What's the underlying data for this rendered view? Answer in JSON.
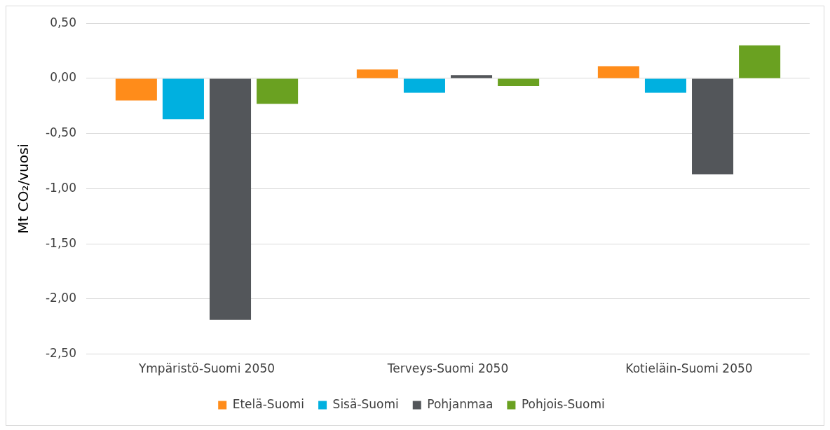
{
  "chart_data": {
    "type": "bar",
    "ylabel": "Mt CO₂/vuosi",
    "categories": [
      "Ympäristö-Suomi 2050",
      "Terveys-Suomi 2050",
      "Kotieläin-Suomi 2050"
    ],
    "series": [
      {
        "name": "Etelä-Suomi",
        "color": "#ff8c1a",
        "values": [
          -0.2,
          0.08,
          0.11
        ]
      },
      {
        "name": "Sisä-Suomi",
        "color": "#00b0e0",
        "values": [
          -0.37,
          -0.13,
          -0.13
        ]
      },
      {
        "name": "Pohjanmaa",
        "color": "#53565a",
        "values": [
          -2.19,
          0.03,
          -0.87
        ]
      },
      {
        "name": "Pohjois-Suomi",
        "color": "#6aa121",
        "values": [
          -0.23,
          -0.07,
          0.3
        ]
      }
    ],
    "ylim": [
      -2.5,
      0.5
    ],
    "yticks": [
      {
        "value": 0.5,
        "label": "0,50"
      },
      {
        "value": 0,
        "label": "0,00"
      },
      {
        "value": -0.5,
        "label": "-0,50"
      },
      {
        "value": -1,
        "label": "-1,00"
      },
      {
        "value": -1.5,
        "label": "-1,50"
      },
      {
        "value": -2,
        "label": "-2,00"
      },
      {
        "value": -2.5,
        "label": "-2,50"
      }
    ],
    "grid": "y",
    "legend": "bottom"
  }
}
